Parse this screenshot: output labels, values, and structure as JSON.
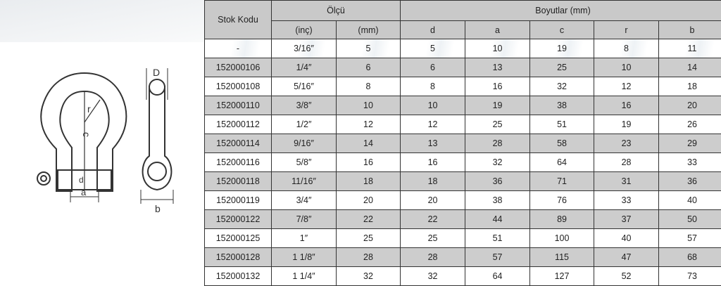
{
  "drawing_labels": {
    "d_top": "D",
    "r": "r",
    "c": "c",
    "d": "d",
    "a": "a",
    "b": "b"
  },
  "table": {
    "header": {
      "stock_code": "Stok Kodu",
      "size": "Ölçü",
      "dimensions": "Boyutlar (mm)"
    },
    "subheader": [
      "(inç)",
      "(mm)",
      "d",
      "a",
      "c",
      "r",
      "b"
    ],
    "rows": [
      [
        "-",
        "3/16″",
        "5",
        "5",
        "10",
        "19",
        "8",
        "11"
      ],
      [
        "152000106",
        "1/4″",
        "6",
        "6",
        "13",
        "25",
        "10",
        "14"
      ],
      [
        "152000108",
        "5/16″",
        "8",
        "8",
        "16",
        "32",
        "12",
        "18"
      ],
      [
        "152000110",
        "3/8″",
        "10",
        "10",
        "19",
        "38",
        "16",
        "20"
      ],
      [
        "152000112",
        "1/2″",
        "12",
        "12",
        "25",
        "51",
        "19",
        "26"
      ],
      [
        "152000114",
        "9/16″",
        "14",
        "13",
        "28",
        "58",
        "23",
        "29"
      ],
      [
        "152000116",
        "5/8″",
        "16",
        "16",
        "32",
        "64",
        "28",
        "33"
      ],
      [
        "152000118",
        "11/16″",
        "18",
        "18",
        "36",
        "71",
        "31",
        "36"
      ],
      [
        "152000119",
        "3/4″",
        "20",
        "20",
        "38",
        "76",
        "33",
        "40"
      ],
      [
        "152000122",
        "7/8″",
        "22",
        "22",
        "44",
        "89",
        "37",
        "50"
      ],
      [
        "152000125",
        "1″",
        "25",
        "25",
        "51",
        "100",
        "40",
        "57"
      ],
      [
        "152000128",
        "1 1/8″",
        "28",
        "28",
        "57",
        "115",
        "47",
        "68"
      ],
      [
        "152000132",
        "1 1/4″",
        "32",
        "32",
        "64",
        "127",
        "52",
        "73"
      ]
    ]
  }
}
